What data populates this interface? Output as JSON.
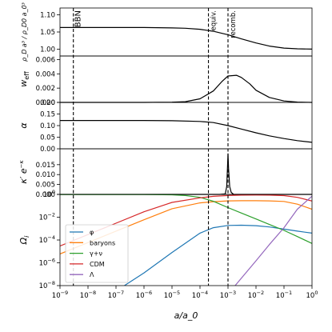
{
  "chart_data": {
    "type": "line",
    "x_scale": "log",
    "xlim": [
      1e-09,
      1
    ],
    "xlabel": "a/a_0",
    "xticks": [
      {
        "value": 1e-09,
        "base": "10",
        "exp": "−9"
      },
      {
        "value": 1e-08,
        "base": "10",
        "exp": "−8"
      },
      {
        "value": 1e-07,
        "base": "10",
        "exp": "−7"
      },
      {
        "value": 1e-06,
        "base": "10",
        "exp": "−6"
      },
      {
        "value": 1e-05,
        "base": "10",
        "exp": "−5"
      },
      {
        "value": 0.0001,
        "base": "10",
        "exp": "−4"
      },
      {
        "value": 0.001,
        "base": "10",
        "exp": "−3"
      },
      {
        "value": 0.01,
        "base": "10",
        "exp": "−2"
      },
      {
        "value": 0.1,
        "base": "10",
        "exp": "−1"
      },
      {
        "value": 1,
        "base": "10",
        "exp": "0"
      }
    ],
    "vlines": [
      {
        "x": 3e-09,
        "label": "BBN"
      },
      {
        "x": 0.0002,
        "label": "equiv."
      },
      {
        "x": 0.001,
        "label": "recomb."
      }
    ],
    "panels": [
      {
        "id": "density",
        "ylabel": "ρ_D a³ / ρ_D0 a_0³",
        "ylim": [
          0.98,
          1.12
        ],
        "yticks": [
          "1.00",
          "1.05",
          "1.10"
        ],
        "ytick_values": [
          1.0,
          1.05,
          1.1
        ],
        "series": [
          {
            "color": "#000000",
            "x": [
              1e-09,
              1e-06,
              1e-05,
              3e-05,
              0.0001,
              0.0003,
              0.001,
              0.003,
              0.01,
              0.03,
              0.1,
              0.3,
              1
            ],
            "y": [
              1.063,
              1.063,
              1.062,
              1.061,
              1.058,
              1.052,
              1.042,
              1.03,
              1.018,
              1.009,
              1.003,
              1.001,
              1.0
            ]
          }
        ]
      },
      {
        "id": "weff",
        "ylabel": "w_eff",
        "ylim": [
          0,
          0.0065
        ],
        "yticks": [
          "0.000",
          "0.002",
          "0.004",
          "0.006"
        ],
        "ytick_values": [
          0,
          0.002,
          0.004,
          0.006
        ],
        "series": [
          {
            "color": "#000000",
            "x": [
              1e-09,
              1e-06,
              1e-05,
              3e-05,
              0.0001,
              0.0003,
              0.0006,
              0.001,
              0.002,
              0.003,
              0.006,
              0.01,
              0.03,
              0.1,
              0.3,
              1
            ],
            "y": [
              0,
              0,
              3e-05,
              0.0001,
              0.0005,
              0.0016,
              0.0029,
              0.0037,
              0.0038,
              0.0035,
              0.0026,
              0.0017,
              0.0007,
              0.0002,
              5e-05,
              0
            ]
          }
        ]
      },
      {
        "id": "alpha",
        "ylabel": "α",
        "ylim": [
          0,
          0.2
        ],
        "yticks": [
          "0.00",
          "0.05",
          "0.10",
          "0.15",
          "0.20"
        ],
        "ytick_values": [
          0,
          0.05,
          0.1,
          0.15,
          0.2
        ],
        "series": [
          {
            "color": "#000000",
            "x": [
              1e-09,
              1e-06,
              1e-05,
              0.0001,
              0.0003,
              0.001,
              0.003,
              0.01,
              0.03,
              0.1,
              0.3,
              1
            ],
            "y": [
              0.122,
              0.122,
              0.121,
              0.118,
              0.113,
              0.1,
              0.085,
              0.069,
              0.056,
              0.044,
              0.035,
              0.028
            ]
          }
        ]
      },
      {
        "id": "visibility",
        "ylabel": "κ′ e^−κ",
        "ylim": [
          0,
          0.023
        ],
        "yticks": [
          "0.000",
          "0.005",
          "0.010",
          "0.015"
        ],
        "ytick_values": [
          0,
          0.005,
          0.01,
          0.015
        ],
        "series": [
          {
            "color": "#000000",
            "x": [
              1e-09,
              0.0005,
              0.0008,
              0.0009,
              0.00096,
              0.001,
              0.00105,
              0.00115,
              0.0013,
              0.0016,
              1
            ],
            "y": [
              0,
              0,
              0.0003,
              0.004,
              0.014,
              0.0205,
              0.013,
              0.004,
              0.001,
              0,
              0
            ]
          }
        ]
      },
      {
        "id": "omega",
        "ylabel": "Ω_i",
        "y_scale": "log",
        "ylim": [
          1e-08,
          1
        ],
        "yticks": [
          {
            "value": 1e-08,
            "base": "10",
            "exp": "−8"
          },
          {
            "value": 1e-06,
            "base": "10",
            "exp": "−6"
          },
          {
            "value": 0.0001,
            "base": "10",
            "exp": "−4"
          },
          {
            "value": 0.01,
            "base": "10",
            "exp": "−2"
          },
          {
            "value": 1,
            "base": "10",
            "exp": "0"
          }
        ],
        "legend_position": "lower-left",
        "series": [
          {
            "name": "φ",
            "color": "#1f77b4",
            "x": [
              2e-07,
              1e-06,
              1e-05,
              0.0001,
              0.0003,
              0.001,
              0.003,
              0.01,
              0.03,
              0.1,
              0.3,
              1
            ],
            "y": [
              1e-08,
              1.3e-07,
              8e-06,
              0.0004,
              0.0012,
              0.0019,
              0.002,
              0.0018,
              0.0014,
              0.0009,
              0.0006,
              0.0004
            ]
          },
          {
            "name": "baryons",
            "color": "#ff7f0e",
            "x": [
              1e-09,
              1e-08,
              1e-07,
              1e-06,
              1e-05,
              0.0001,
              0.0003,
              0.001,
              0.003,
              0.01,
              0.03,
              0.1,
              0.3,
              1
            ],
            "y": [
              6e-06,
              6e-05,
              0.0006,
              0.006,
              0.055,
              0.18,
              0.23,
              0.27,
              0.28,
              0.28,
              0.27,
              0.24,
              0.14,
              0.05
            ]
          },
          {
            "name": "γ+ν",
            "color": "#2ca02c",
            "x": [
              1e-09,
              1e-06,
              1e-05,
              3e-05,
              0.0001,
              0.0003,
              0.001,
              0.003,
              0.01,
              0.03,
              0.1,
              0.3,
              1
            ],
            "y": [
              0.99,
              0.99,
              0.92,
              0.8,
              0.55,
              0.25,
              0.07,
              0.023,
              0.007,
              0.0023,
              0.0007,
              0.0002,
              5e-05
            ]
          },
          {
            "name": "CDM",
            "color": "#d62728",
            "x": [
              1e-09,
              1e-08,
              1e-07,
              1e-06,
              1e-05,
              0.0001,
              0.0003,
              0.001,
              0.003,
              0.01,
              0.03,
              0.1,
              0.3,
              1
            ],
            "y": [
              3e-05,
              0.0003,
              0.003,
              0.03,
              0.2,
              0.5,
              0.68,
              0.8,
              0.86,
              0.88,
              0.86,
              0.78,
              0.55,
              0.26
            ]
          },
          {
            "name": "Λ",
            "color": "#9467bd",
            "x": [
              0.0018,
              0.01,
              0.03,
              0.1,
              0.3,
              1
            ],
            "y": [
              1e-08,
              1.5e-06,
              4e-05,
              0.0012,
              0.05,
              0.7
            ]
          }
        ]
      }
    ]
  }
}
